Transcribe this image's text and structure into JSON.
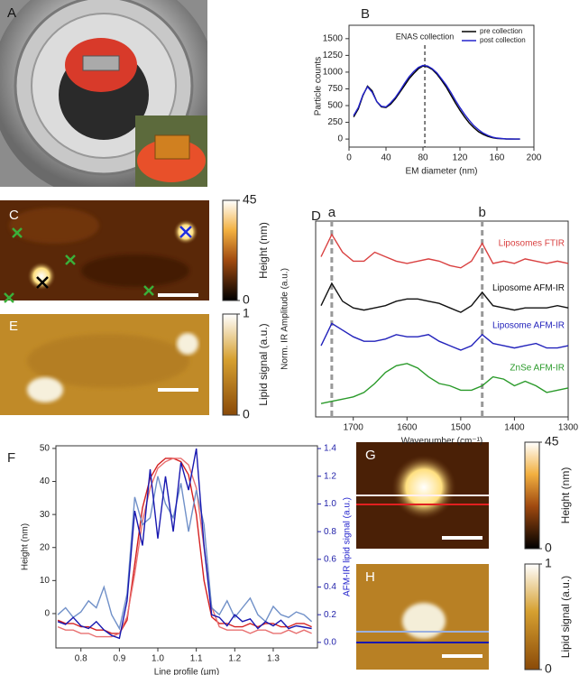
{
  "chart_data": [
    {
      "type": "line",
      "label": "B",
      "xlabel": "EM diameter (nm)",
      "ylabel": "Particle counts",
      "xlim": [
        0,
        200
      ],
      "xticks": [
        0,
        40,
        80,
        120,
        160,
        200
      ],
      "ylim": [
        -120,
        1700
      ],
      "yticks": [
        0,
        250,
        500,
        750,
        1000,
        1250,
        1500
      ],
      "legend": "upper right",
      "annotation": {
        "text": "ENAS collection",
        "x": 82
      },
      "x": [
        5,
        10,
        15,
        20,
        25,
        30,
        35,
        40,
        45,
        50,
        55,
        60,
        65,
        70,
        75,
        80,
        85,
        90,
        95,
        100,
        105,
        110,
        115,
        120,
        125,
        130,
        135,
        140,
        145,
        150,
        155,
        160,
        165,
        170,
        175,
        180,
        185
      ],
      "series": [
        {
          "name": "pre collection",
          "color": "#000000",
          "values": [
            330,
            450,
            650,
            790,
            720,
            560,
            480,
            470,
            520,
            600,
            700,
            800,
            900,
            980,
            1050,
            1090,
            1080,
            1040,
            970,
            880,
            780,
            660,
            540,
            430,
            330,
            240,
            170,
            110,
            70,
            40,
            20,
            10,
            5,
            2,
            0,
            0,
            0
          ]
        },
        {
          "name": "post collection",
          "color": "#2222cc",
          "values": [
            350,
            470,
            660,
            780,
            700,
            560,
            490,
            480,
            540,
            620,
            720,
            830,
            930,
            1010,
            1070,
            1100,
            1090,
            1050,
            990,
            900,
            810,
            700,
            580,
            470,
            370,
            280,
            200,
            140,
            90,
            55,
            30,
            15,
            8,
            3,
            1,
            0,
            0
          ]
        }
      ]
    },
    {
      "type": "line",
      "label": "D",
      "xlabel": "Wavenumber (cm⁻¹)",
      "ylabel": "Norm. IR Amplitude (a.u.)",
      "xlim": [
        1770,
        1300
      ],
      "xticks": [
        1700,
        1600,
        1500,
        1400,
        1300
      ],
      "ylim": [
        0,
        4.4
      ],
      "markers": [
        {
          "label": "a",
          "x": 1740
        },
        {
          "label": "b",
          "x": 1460
        }
      ],
      "x": [
        1760,
        1740,
        1720,
        1700,
        1680,
        1660,
        1640,
        1620,
        1600,
        1580,
        1560,
        1540,
        1520,
        1500,
        1480,
        1460,
        1440,
        1420,
        1400,
        1380,
        1360,
        1340,
        1320,
        1300
      ],
      "series": [
        {
          "name": "Liposomes FTIR",
          "color": "#d94040",
          "values": [
            3.6,
            4.1,
            3.7,
            3.5,
            3.5,
            3.7,
            3.6,
            3.5,
            3.45,
            3.5,
            3.55,
            3.5,
            3.4,
            3.35,
            3.5,
            3.9,
            3.45,
            3.5,
            3.45,
            3.55,
            3.5,
            3.45,
            3.5,
            3.45
          ]
        },
        {
          "name": "Liposome AFM-IR",
          "color": "#111111",
          "values": [
            2.5,
            3.0,
            2.6,
            2.45,
            2.4,
            2.45,
            2.5,
            2.6,
            2.65,
            2.65,
            2.6,
            2.55,
            2.45,
            2.35,
            2.5,
            2.8,
            2.5,
            2.45,
            2.4,
            2.45,
            2.45,
            2.45,
            2.5,
            2.45
          ]
        },
        {
          "name": "Liposome AFM-IR",
          "color": "#2222bb",
          "values": [
            1.6,
            2.1,
            1.95,
            1.8,
            1.7,
            1.7,
            1.75,
            1.85,
            1.8,
            1.8,
            1.85,
            1.7,
            1.6,
            1.5,
            1.6,
            1.85,
            1.65,
            1.6,
            1.55,
            1.6,
            1.65,
            1.55,
            1.55,
            1.6
          ]
        },
        {
          "name": "ZnSe AFM-IR",
          "color": "#2a9a2a",
          "values": [
            0.3,
            0.35,
            0.4,
            0.45,
            0.55,
            0.75,
            1.0,
            1.15,
            1.2,
            1.1,
            0.9,
            0.75,
            0.7,
            0.6,
            0.6,
            0.7,
            0.9,
            0.85,
            0.7,
            0.8,
            0.7,
            0.55,
            0.6,
            0.65
          ]
        }
      ]
    },
    {
      "type": "line",
      "label": "F",
      "xlabel": "Line profile (µm)",
      "ylabel": "Height (nm)",
      "y2label": "AFM-IR lipid signal (a.u.)",
      "xlim": [
        0.735,
        1.415
      ],
      "xticks": [
        0.8,
        0.9,
        {
          "value": 1.0,
          "label": "1.0"
        },
        1.1,
        1.2,
        1.3
      ],
      "ylim": [
        -10.4,
        50.8
      ],
      "yticks": [
        0,
        10,
        20,
        30,
        40,
        50
      ],
      "y2lim": [
        -0.04,
        1.42
      ],
      "y2ticks": [
        {
          "value": 0,
          "label": "0.0"
        },
        0.2,
        0.4,
        0.6,
        0.8,
        {
          "value": 1,
          "label": "1.0"
        },
        1.2,
        1.4
      ],
      "x": [
        0.74,
        0.76,
        0.78,
        0.8,
        0.82,
        0.84,
        0.86,
        0.88,
        0.9,
        0.92,
        0.94,
        0.96,
        0.98,
        1.0,
        1.02,
        1.04,
        1.06,
        1.08,
        1.1,
        1.12,
        1.14,
        1.16,
        1.18,
        1.2,
        1.22,
        1.24,
        1.26,
        1.28,
        1.3,
        1.32,
        1.34,
        1.36,
        1.38,
        1.4
      ],
      "series": [
        {
          "color": "#d42020",
          "values": [
            -2,
            -3,
            -3,
            -4,
            -4,
            -5,
            -5,
            -6,
            -6,
            -2,
            15,
            32,
            41,
            45,
            47,
            47,
            46,
            42,
            30,
            10,
            -1,
            -3,
            -3,
            -4,
            -4,
            -3,
            -4,
            -3,
            -3,
            -4,
            -4,
            -3,
            -3,
            -4
          ]
        },
        {
          "color": "#e87070",
          "values": [
            -4,
            -5,
            -5,
            -6,
            -6,
            -7,
            -7,
            -7,
            -6,
            -1,
            12,
            28,
            38,
            44,
            46,
            47,
            47,
            45,
            38,
            20,
            2,
            -4,
            -5,
            -5,
            -5,
            -6,
            -5,
            -5,
            -6,
            -6,
            -5,
            -6,
            -5,
            -6
          ]
        },
        {
          "color": "#7090c8",
          "axis": "y2",
          "values": [
            0.2,
            0.25,
            0.18,
            0.22,
            0.3,
            0.25,
            0.4,
            0.2,
            0.1,
            0.35,
            1.05,
            0.85,
            0.9,
            1.2,
            1.0,
            0.9,
            1.15,
            0.8,
            1.1,
            0.85,
            0.25,
            0.2,
            0.3,
            0.18,
            0.25,
            0.32,
            0.2,
            0.15,
            0.26,
            0.2,
            0.18,
            0.22,
            0.2,
            0.15
          ]
        },
        {
          "color": "#1818b0",
          "axis": "y2",
          "values": [
            0.15,
            0.13,
            0.18,
            0.12,
            0.1,
            0.15,
            0.09,
            0.05,
            0.03,
            0.3,
            0.95,
            0.7,
            1.25,
            0.75,
            1.2,
            0.8,
            1.3,
            1.1,
            1.4,
            0.7,
            0.2,
            0.18,
            0.12,
            0.2,
            0.15,
            0.17,
            0.1,
            0.15,
            0.12,
            0.16,
            0.1,
            0.12,
            0.11,
            0.1
          ]
        }
      ]
    }
  ],
  "images": [
    {
      "label": "A"
    },
    {
      "label": "C",
      "colorbar": {
        "label": "Height (nm)",
        "lim": [
          0,
          45
        ],
        "ticks": [
          0,
          45
        ]
      }
    },
    {
      "label": "E",
      "colorbar": {
        "label": "Lipid signal (a.u.)",
        "lim": [
          0,
          1
        ],
        "ticks": [
          0,
          1
        ]
      }
    },
    {
      "label": "G",
      "colorbar": {
        "label": "Height (nm)",
        "lim": [
          0,
          45
        ],
        "ticks": [
          0,
          45
        ]
      }
    },
    {
      "label": "H",
      "colorbar": {
        "label": "Lipid signal (a.u.)",
        "lim": [
          0,
          1
        ],
        "ticks": [
          0,
          1
        ]
      }
    }
  ]
}
